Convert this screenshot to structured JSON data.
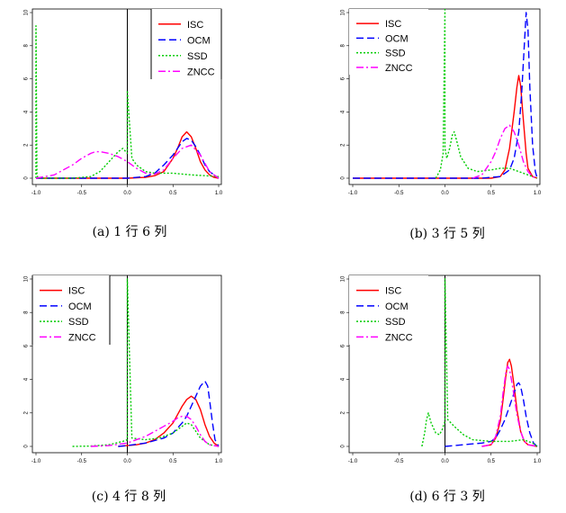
{
  "figure": {
    "panels": [
      {
        "caption": "(a) 1 行 6 列"
      },
      {
        "caption": "(b) 3 行 5 列"
      },
      {
        "caption": "(c) 4 行 8 列"
      },
      {
        "caption": "(d) 6 行 3 列"
      }
    ]
  },
  "chart_data": [
    {
      "type": "line",
      "caption": "(a) 1 行 6 列",
      "xlim": [
        -1.0,
        1.0
      ],
      "ylim": [
        0,
        10
      ],
      "xticks": [
        "-1.0",
        "-0.5",
        "0.0",
        "0.5",
        "1.0"
      ],
      "yticks": [
        "0",
        "2",
        "4",
        "6",
        "8",
        "10"
      ],
      "vline": 0.0,
      "legend_position": "top-right",
      "series": [
        {
          "name": "ISC",
          "color": "#ff0000",
          "dash": "solid",
          "x": [
            -1.0,
            0.0,
            0.2,
            0.3,
            0.4,
            0.5,
            0.55,
            0.6,
            0.65,
            0.7,
            0.75,
            0.8,
            0.85,
            0.9,
            0.95,
            1.0
          ],
          "y": [
            0,
            0,
            0.05,
            0.15,
            0.4,
            1.2,
            1.8,
            2.5,
            2.8,
            2.5,
            1.8,
            1.0,
            0.5,
            0.2,
            0.05,
            0
          ]
        },
        {
          "name": "OCM",
          "color": "#0000ff",
          "dash": "8,4",
          "x": [
            -1.0,
            0.0,
            0.2,
            0.3,
            0.4,
            0.5,
            0.55,
            0.6,
            0.65,
            0.7,
            0.75,
            0.8,
            0.85,
            0.9,
            1.0
          ],
          "y": [
            0,
            0,
            0.1,
            0.3,
            0.8,
            1.4,
            1.8,
            2.2,
            2.4,
            2.3,
            1.9,
            1.4,
            0.8,
            0.4,
            0
          ]
        },
        {
          "name": "SSD",
          "color": "#00cc00",
          "dash": "2,2",
          "x": [
            -1.0,
            -1.0,
            -0.99,
            -0.98,
            -0.95,
            -0.6,
            -0.4,
            -0.3,
            -0.2,
            -0.1,
            -0.05,
            0.0,
            0.0,
            0.05,
            0.1,
            0.2,
            0.3,
            0.5,
            0.7,
            1.0
          ],
          "y": [
            0,
            9.2,
            0.3,
            0.0,
            0.0,
            0.0,
            0.1,
            0.4,
            1.0,
            1.6,
            1.8,
            1.5,
            5.3,
            1.2,
            0.8,
            0.4,
            0.3,
            0.3,
            0.2,
            0.1
          ]
        },
        {
          "name": "ZNCC",
          "color": "#ff00ff",
          "dash": "8,3,2,3",
          "x": [
            -1.0,
            -0.8,
            -0.7,
            -0.6,
            -0.5,
            -0.4,
            -0.35,
            -0.3,
            -0.2,
            -0.1,
            0.0,
            0.1,
            0.2,
            0.3,
            0.4,
            0.5,
            0.6,
            0.7,
            0.8,
            0.9,
            1.0
          ],
          "y": [
            0,
            0.2,
            0.5,
            0.8,
            1.2,
            1.5,
            1.6,
            1.6,
            1.5,
            1.3,
            1.0,
            0.6,
            0.3,
            0.25,
            0.5,
            1.2,
            1.8,
            2.0,
            1.4,
            0.4,
            0
          ]
        }
      ]
    },
    {
      "type": "line",
      "caption": "(b) 3 行 5 列",
      "xlim": [
        -1.0,
        1.0
      ],
      "ylim": [
        0,
        10
      ],
      "xticks": [
        "-1.0",
        "-0.5",
        "0.0",
        "0.5",
        "1.0"
      ],
      "yticks": [
        "0",
        "2",
        "4",
        "6",
        "8",
        "10"
      ],
      "vline": null,
      "legend_position": "top-left",
      "series": [
        {
          "name": "ISC",
          "color": "#ff0000",
          "dash": "solid",
          "x": [
            -1.0,
            0.5,
            0.6,
            0.65,
            0.7,
            0.75,
            0.78,
            0.8,
            0.82,
            0.85,
            0.88,
            0.9,
            0.95,
            1.0
          ],
          "y": [
            0,
            0,
            0.1,
            0.5,
            1.8,
            4.0,
            5.5,
            6.2,
            5.6,
            3.5,
            1.5,
            0.6,
            0.1,
            0
          ]
        },
        {
          "name": "OCM",
          "color": "#0000ff",
          "dash": "8,4",
          "x": [
            -1.0,
            0.4,
            0.6,
            0.7,
            0.75,
            0.8,
            0.83,
            0.86,
            0.88,
            0.9,
            0.92,
            0.95,
            0.98,
            1.0
          ],
          "y": [
            0,
            0,
            0.1,
            0.5,
            1.2,
            2.8,
            5.0,
            8.0,
            10.0,
            9.0,
            5.5,
            2.0,
            0.4,
            0
          ]
        },
        {
          "name": "SSD",
          "color": "#00cc00",
          "dash": "2,2",
          "x": [
            -0.1,
            -0.05,
            -0.02,
            0.0,
            0.0,
            0.02,
            0.05,
            0.08,
            0.1,
            0.13,
            0.17,
            0.25,
            0.35,
            0.5,
            0.6,
            0.7,
            0.8,
            0.9,
            1.0
          ],
          "y": [
            0,
            0.5,
            1.5,
            10.4,
            1.8,
            1.2,
            1.8,
            2.6,
            2.8,
            2.2,
            1.3,
            0.6,
            0.4,
            0.5,
            0.6,
            0.6,
            0.4,
            0.2,
            0
          ]
        },
        {
          "name": "ZNCC",
          "color": "#ff00ff",
          "dash": "8,3,2,3",
          "x": [
            0.3,
            0.4,
            0.45,
            0.5,
            0.55,
            0.6,
            0.65,
            0.7,
            0.75,
            0.8,
            0.85,
            0.9,
            0.95,
            1.0
          ],
          "y": [
            0,
            0.2,
            0.6,
            1.0,
            1.6,
            2.4,
            3.0,
            3.2,
            2.8,
            2.0,
            1.0,
            0.4,
            0.1,
            0
          ]
        }
      ]
    },
    {
      "type": "line",
      "caption": "(c) 4 行 8 列",
      "xlim": [
        -1.0,
        1.0
      ],
      "ylim": [
        0,
        10
      ],
      "xticks": [
        "-1.0",
        "-0.5",
        "0.0",
        "0.5",
        "1.0"
      ],
      "yticks": [
        "0",
        "2",
        "4",
        "6",
        "8",
        "10"
      ],
      "vline": 0.0,
      "legend_position": "top-left",
      "series": [
        {
          "name": "ISC",
          "color": "#ff0000",
          "dash": "solid",
          "x": [
            -0.1,
            0.0,
            0.1,
            0.2,
            0.3,
            0.4,
            0.5,
            0.55,
            0.6,
            0.65,
            0.7,
            0.75,
            0.8,
            0.85,
            0.9,
            0.95,
            1.0
          ],
          "y": [
            0,
            0.05,
            0.1,
            0.2,
            0.4,
            0.8,
            1.4,
            1.9,
            2.4,
            2.8,
            3.0,
            2.8,
            2.2,
            1.3,
            0.6,
            0.2,
            0
          ]
        },
        {
          "name": "OCM",
          "color": "#0000ff",
          "dash": "8,4",
          "x": [
            -0.1,
            0.0,
            0.2,
            0.4,
            0.5,
            0.6,
            0.65,
            0.7,
            0.75,
            0.8,
            0.85,
            0.88,
            0.9,
            0.93,
            0.96,
            1.0
          ],
          "y": [
            0,
            0.05,
            0.2,
            0.5,
            0.8,
            1.4,
            1.8,
            2.4,
            3.0,
            3.6,
            3.9,
            3.6,
            2.8,
            1.5,
            0.4,
            0
          ]
        },
        {
          "name": "SSD",
          "color": "#00cc00",
          "dash": "2,2",
          "x": [
            -0.6,
            -0.4,
            -0.2,
            -0.05,
            0.0,
            0.0,
            0.05,
            0.2,
            0.35,
            0.5,
            0.6,
            0.65,
            0.7,
            0.75,
            0.8,
            0.9,
            1.0
          ],
          "y": [
            0,
            0.02,
            0.1,
            0.3,
            0.4,
            10.0,
            0.5,
            0.4,
            0.5,
            0.8,
            1.2,
            1.4,
            1.3,
            0.9,
            0.5,
            0.1,
            0
          ]
        },
        {
          "name": "ZNCC",
          "color": "#ff00ff",
          "dash": "8,3,2,3",
          "x": [
            -0.4,
            -0.2,
            0.0,
            0.1,
            0.2,
            0.3,
            0.4,
            0.5,
            0.55,
            0.6,
            0.65,
            0.7,
            0.75,
            0.8,
            0.85,
            0.9,
            1.0
          ],
          "y": [
            0,
            0.05,
            0.2,
            0.4,
            0.6,
            0.9,
            1.2,
            1.5,
            1.7,
            1.8,
            1.8,
            1.6,
            1.2,
            0.7,
            0.3,
            0.1,
            0
          ]
        }
      ]
    },
    {
      "type": "line",
      "caption": "(d) 6 行 3 列",
      "xlim": [
        -1.0,
        1.0
      ],
      "ylim": [
        0,
        10
      ],
      "xticks": [
        "-1.0",
        "-0.5",
        "0.0",
        "0.5",
        "1.0"
      ],
      "yticks": [
        "0",
        "2",
        "4",
        "6",
        "8",
        "10"
      ],
      "vline": 0.0,
      "legend_position": "top-left",
      "series": [
        {
          "name": "ISC",
          "color": "#ff0000",
          "dash": "solid",
          "x": [
            0.4,
            0.5,
            0.55,
            0.6,
            0.63,
            0.66,
            0.68,
            0.7,
            0.72,
            0.75,
            0.78,
            0.82,
            0.86,
            0.9,
            1.0
          ],
          "y": [
            0,
            0.1,
            0.5,
            1.5,
            2.8,
            4.2,
            5.0,
            5.2,
            4.8,
            3.6,
            2.2,
            0.9,
            0.3,
            0.1,
            0
          ]
        },
        {
          "name": "OCM",
          "color": "#0000ff",
          "dash": "8,4",
          "x": [
            0.0,
            0.2,
            0.4,
            0.5,
            0.55,
            0.6,
            0.65,
            0.7,
            0.75,
            0.78,
            0.8,
            0.82,
            0.85,
            0.88,
            0.92,
            0.96,
            1.0
          ],
          "y": [
            0,
            0.1,
            0.2,
            0.3,
            0.5,
            1.0,
            1.6,
            2.4,
            3.2,
            3.7,
            3.8,
            3.6,
            2.8,
            1.8,
            0.8,
            0.2,
            0
          ]
        },
        {
          "name": "SSD",
          "color": "#00cc00",
          "dash": "2,2",
          "x": [
            -0.25,
            -0.22,
            -0.2,
            -0.18,
            -0.15,
            -0.1,
            -0.06,
            -0.03,
            0.0,
            0.0,
            0.03,
            0.1,
            0.2,
            0.3,
            0.5,
            0.7,
            0.85,
            0.95,
            1.0
          ],
          "y": [
            0,
            0.8,
            1.6,
            2.0,
            1.4,
            0.8,
            0.7,
            1.0,
            1.5,
            10.0,
            1.6,
            1.2,
            0.7,
            0.4,
            0.3,
            0.3,
            0.4,
            0.2,
            0
          ]
        },
        {
          "name": "ZNCC",
          "color": "#ff00ff",
          "dash": "8,3,2,3",
          "x": [
            0.4,
            0.5,
            0.55,
            0.6,
            0.63,
            0.66,
            0.68,
            0.7,
            0.72,
            0.75,
            0.78,
            0.82,
            0.86,
            0.9,
            1.0
          ],
          "y": [
            0,
            0.1,
            0.6,
            1.8,
            3.2,
            4.4,
            4.8,
            4.6,
            4.0,
            3.0,
            1.9,
            0.9,
            0.3,
            0.1,
            0
          ]
        }
      ]
    }
  ]
}
